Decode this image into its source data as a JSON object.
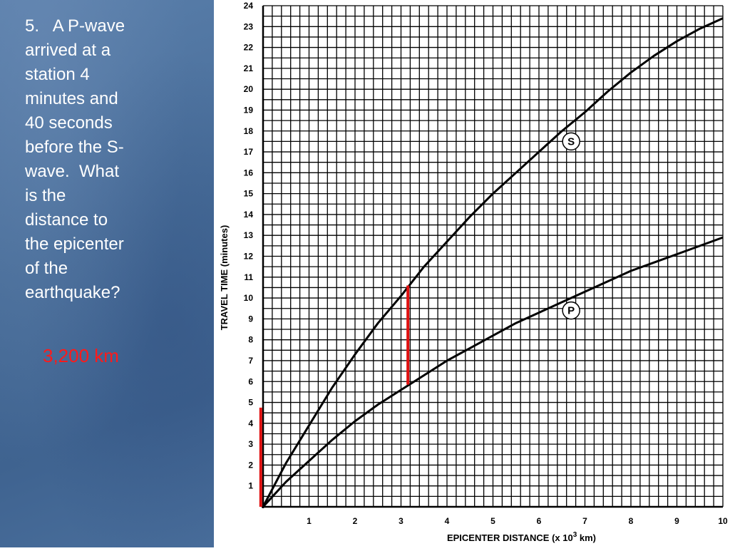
{
  "slide": {
    "question_lines": [
      "5.   A P-wave",
      "arrived at a",
      "station 4",
      "minutes and",
      "40 seconds",
      "before the S-",
      "wave.  What",
      "is the",
      "distance to",
      "the epicenter",
      "of the",
      "earthquake?"
    ],
    "answer": "3,200 km"
  },
  "colors": {
    "panel_bg": "#4a6f9c",
    "question_text": "#ffffff",
    "answer_text": "#ff1a1a",
    "highlight": "#e01010"
  },
  "chart_data": {
    "type": "line",
    "xlabel": "EPICENTER DISTANCE (x 10",
    "xlabel_sup": "3",
    "xlabel_end": " km)",
    "ylabel": "TRAVEL TIME (minutes)",
    "xlim": [
      0,
      10
    ],
    "ylim": [
      0,
      24
    ],
    "xticks": [
      1,
      2,
      3,
      4,
      5,
      6,
      7,
      8,
      9,
      10
    ],
    "yticks": [
      1,
      2,
      3,
      4,
      5,
      6,
      7,
      8,
      9,
      10,
      11,
      12,
      13,
      14,
      15,
      16,
      17,
      18,
      19,
      20,
      21,
      22,
      23,
      24
    ],
    "x_minor_per_unit": 5,
    "y_minor_per_unit": 2,
    "grid": true,
    "series": [
      {
        "name": "S",
        "x": [
          0,
          0.5,
          1,
          1.5,
          2,
          2.5,
          3,
          3.5,
          4,
          4.5,
          5,
          5.5,
          6,
          6.5,
          7,
          7.5,
          8,
          8.5,
          9,
          9.5,
          10
        ],
        "y": [
          0,
          2.1,
          3.9,
          5.7,
          7.3,
          8.8,
          10.1,
          11.5,
          12.7,
          13.9,
          15.0,
          16.0,
          17.0,
          18.0,
          18.9,
          19.9,
          20.8,
          21.6,
          22.3,
          22.9,
          23.4
        ]
      },
      {
        "name": "P",
        "x": [
          0,
          0.5,
          1,
          1.5,
          2,
          2.5,
          3,
          3.5,
          4,
          4.5,
          5,
          5.5,
          6,
          6.5,
          7,
          7.5,
          8,
          8.5,
          9,
          9.5,
          10
        ],
        "y": [
          0,
          1.2,
          2.2,
          3.2,
          4.1,
          4.9,
          5.6,
          6.3,
          7.0,
          7.6,
          8.2,
          8.8,
          9.3,
          9.8,
          10.3,
          10.8,
          11.3,
          11.7,
          12.1,
          12.5,
          12.9
        ]
      }
    ],
    "curve_labels": [
      {
        "text": "S",
        "x": 6.7,
        "y": 17.5
      },
      {
        "text": "P",
        "x": 6.7,
        "y": 9.4
      }
    ],
    "highlight_bars": [
      {
        "x": -0.05,
        "y0": 0,
        "y1": 4.75
      },
      {
        "x": 3.15,
        "y0": 5.85,
        "y1": 10.6
      }
    ]
  }
}
